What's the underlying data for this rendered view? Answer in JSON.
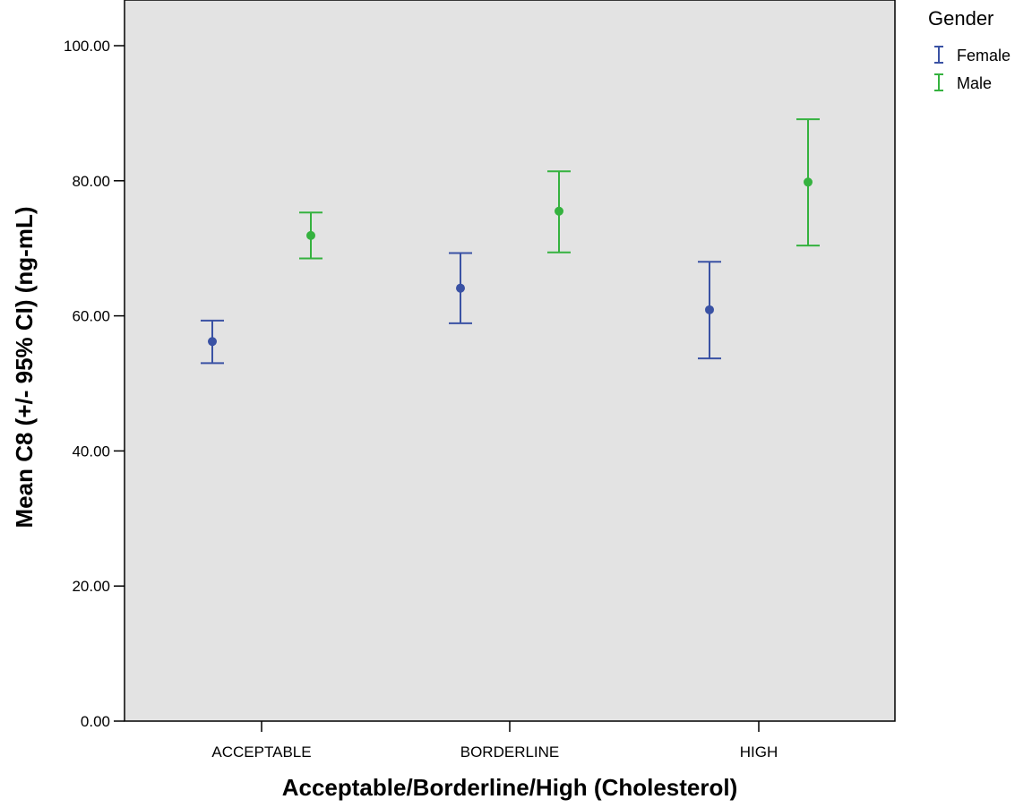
{
  "chart_data": {
    "type": "errorbar",
    "xlabel": "Acceptable/Borderline/High (Cholesterol)",
    "ylabel": "Mean C8 (+/- 95% CI) (ng-mL)",
    "categories": [
      "ACCEPTABLE",
      "BORDERLINE",
      "HIGH"
    ],
    "ylim": [
      0,
      110
    ],
    "yticks": [
      0,
      20,
      40,
      60,
      80,
      100
    ],
    "ytick_labels": [
      "0.00",
      "20.00",
      "40.00",
      "60.00",
      "80.00",
      "100.00"
    ],
    "grid": false,
    "plot_background": "#e3e3e3",
    "legend": {
      "title": "Gender",
      "position": "right"
    },
    "series": [
      {
        "name": "Female",
        "color": "#3a52a4",
        "means": [
          56.2,
          64.1,
          60.9
        ],
        "lower": [
          53.0,
          58.9,
          53.7
        ],
        "upper": [
          59.3,
          69.3,
          68.0
        ]
      },
      {
        "name": "Male",
        "color": "#35b23f",
        "means": [
          71.9,
          75.5,
          79.8
        ],
        "lower": [
          68.5,
          69.4,
          70.4
        ],
        "upper": [
          75.3,
          81.4,
          89.1
        ]
      }
    ]
  }
}
